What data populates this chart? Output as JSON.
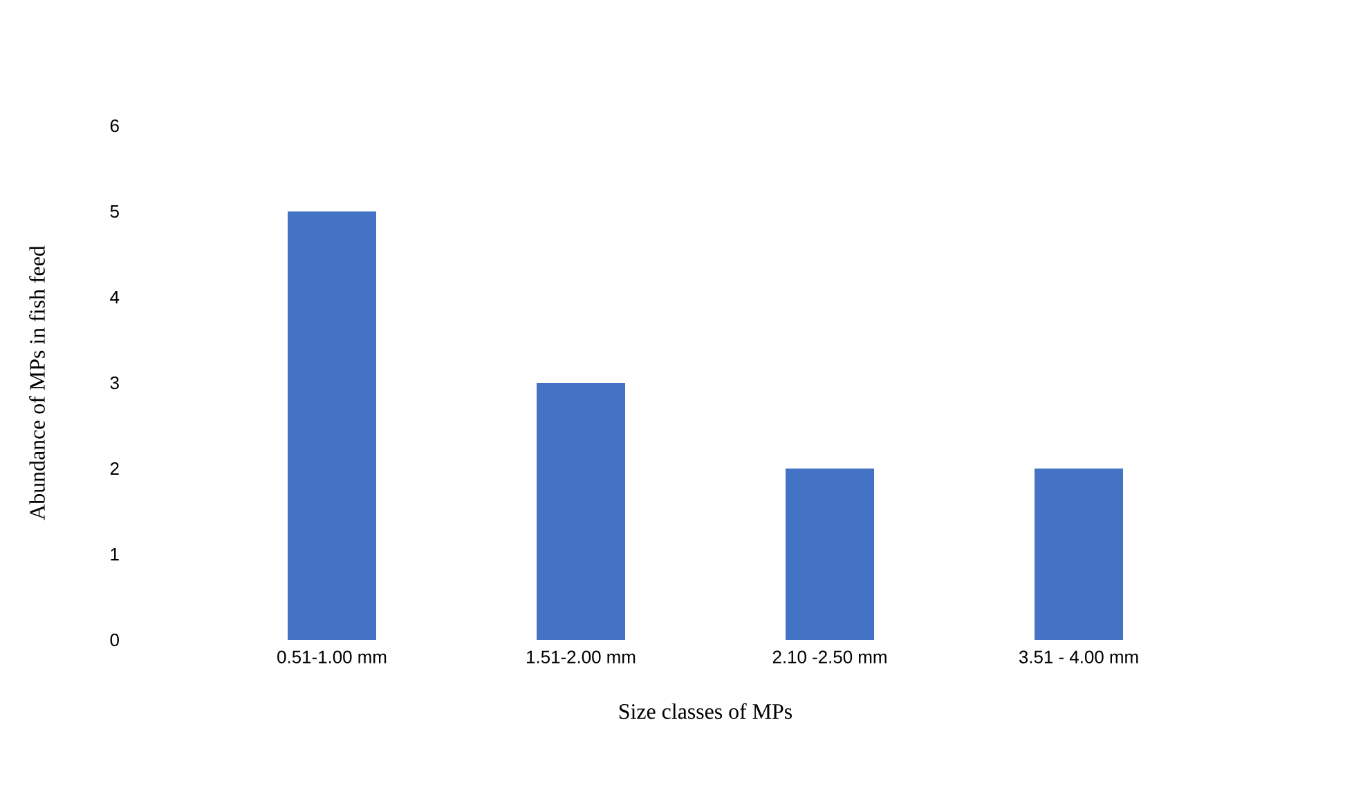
{
  "chart_data": {
    "type": "bar",
    "xlabel": "Size classes of MPs",
    "ylabel": "Abundance of MPs in fish feed",
    "categories": [
      "0.51-1.00 mm",
      "1.51-2.00 mm",
      "2.10 -2.50 mm",
      "3.51 - 4.00 mm"
    ],
    "values": [
      5,
      3,
      2,
      2
    ],
    "color": "#4472c4",
    "ylim": [
      0,
      6
    ],
    "yticks": [
      0,
      1,
      2,
      3,
      4,
      5,
      6
    ],
    "grid": false
  }
}
